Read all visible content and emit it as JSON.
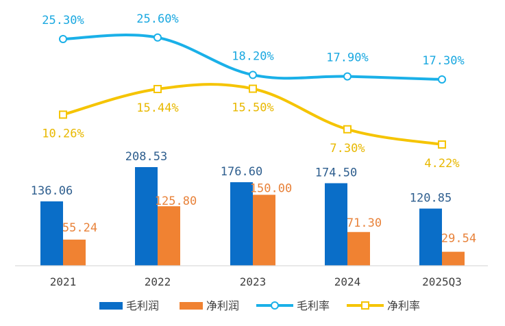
{
  "chart_data": {
    "type": "bar+line",
    "categories": [
      "2021",
      "2022",
      "2023",
      "2024",
      "2025Q3"
    ],
    "series": [
      {
        "name": "毛利润",
        "kind": "bar",
        "values": [
          136.06,
          208.53,
          176.6,
          174.5,
          120.85
        ],
        "labels": [
          "136.06",
          "208.53",
          "176.60",
          "174.50",
          "120.85"
        ],
        "color": "#0A6EC8",
        "label_color": "#2E5E8E"
      },
      {
        "name": "净利润",
        "kind": "bar",
        "values": [
          55.24,
          125.8,
          150.0,
          71.3,
          29.54
        ],
        "labels": [
          "55.24",
          "125.80",
          "150.00",
          "71.30",
          "29.54"
        ],
        "color": "#F08232",
        "label_color": "#E8823A"
      },
      {
        "name": "毛利率",
        "kind": "line",
        "values": [
          25.3,
          25.6,
          18.2,
          17.9,
          17.3
        ],
        "labels": [
          "25.30%",
          "25.60%",
          "18.20%",
          "17.90%",
          "17.30%"
        ],
        "color": "#1AB0E8",
        "label_color": "#1AA8E0",
        "marker": "circle"
      },
      {
        "name": "净利率",
        "kind": "line",
        "values": [
          10.26,
          15.44,
          15.5,
          7.3,
          4.22
        ],
        "labels": [
          "10.26%",
          "15.44%",
          "15.50%",
          "7.30%",
          "4.22%"
        ],
        "color": "#F5C400",
        "label_color": "#E8B800",
        "marker": "square"
      }
    ],
    "bar_axis": {
      "ylim": [
        0,
        300
      ]
    },
    "line_axis": {
      "ylim": [
        0,
        30
      ]
    },
    "legend": "bottom",
    "grid": false
  }
}
